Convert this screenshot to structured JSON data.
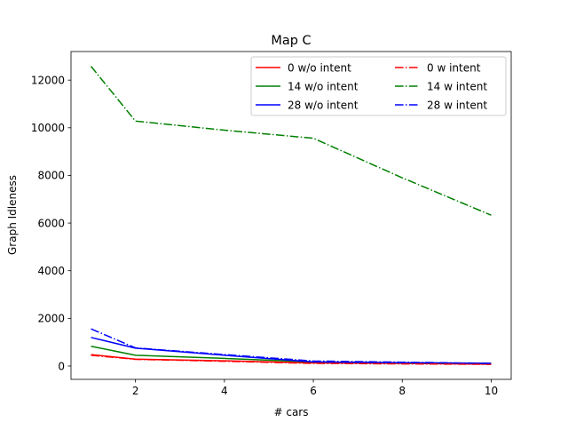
{
  "chart_data": {
    "type": "line",
    "title": "Map C",
    "xlabel": "# cars",
    "ylabel": "Graph Idleness",
    "xlim": [
      0.55,
      10.45
    ],
    "ylim": [
      -560,
      13200
    ],
    "xticks": [
      2,
      4,
      6,
      8,
      10
    ],
    "yticks": [
      0,
      2000,
      4000,
      6000,
      8000,
      10000,
      12000
    ],
    "grid": false,
    "legend_position": "top-right",
    "legend_columns": 2,
    "x": [
      1,
      2,
      4,
      6,
      8,
      10
    ],
    "series": [
      {
        "name": "0 w/o intent",
        "color": "#ff0000",
        "dash": "solid",
        "values": [
          480,
          290,
          220,
          130,
          110,
          80
        ]
      },
      {
        "name": "14 w/o intent",
        "color": "#008000",
        "dash": "solid",
        "values": [
          830,
          450,
          320,
          170,
          130,
          110
        ]
      },
      {
        "name": "28 w/o intent",
        "color": "#0000ff",
        "dash": "solid",
        "values": [
          1200,
          750,
          450,
          170,
          140,
          110
        ]
      },
      {
        "name": "0 w intent",
        "color": "#ff0000",
        "dash": "dashdot",
        "values": [
          450,
          280,
          200,
          110,
          90,
          70
        ]
      },
      {
        "name": "14 w intent",
        "color": "#008000",
        "dash": "dashdot",
        "values": [
          12580,
          10280,
          9900,
          9560,
          7900,
          6330
        ]
      },
      {
        "name": "28 w intent",
        "color": "#0000ff",
        "dash": "dashdot",
        "values": [
          1560,
          760,
          480,
          210,
          160,
          110
        ]
      }
    ]
  }
}
